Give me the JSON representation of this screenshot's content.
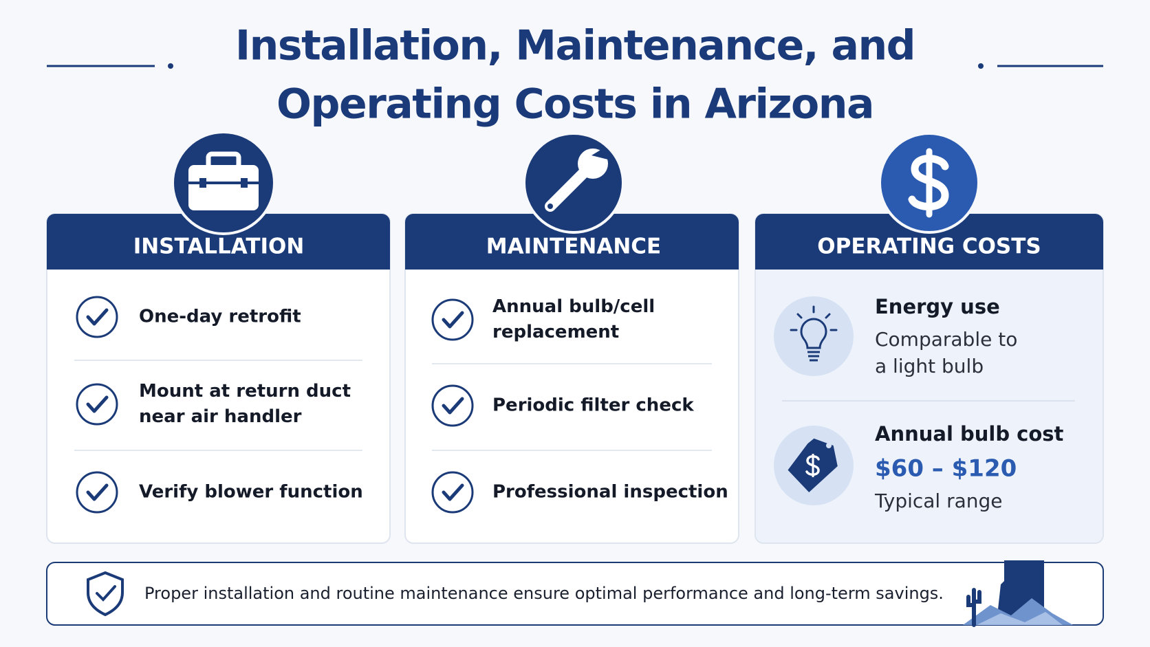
{
  "header": {
    "title": [
      "Installation, Maintenance, and",
      "Operating Costs in Arizona"
    ]
  },
  "cards": [
    {
      "heading": "INSTALLATION",
      "items": [
        [
          "One-day retrofit"
        ],
        [
          "Mount at return duct",
          "near air handler"
        ],
        [
          "Verify blower function"
        ]
      ]
    },
    {
      "heading": "MAINTENANCE",
      "items": [
        [
          "Annual bulb/cell",
          "replacement"
        ],
        [
          "Periodic filter check"
        ],
        [
          "Professional inspection"
        ]
      ]
    },
    {
      "heading": "OPERATING COSTS",
      "items": [
        {
          "title": "Energy use",
          "lines": [
            "Comparable to",
            "a light bulb"
          ]
        },
        {
          "title": "Annual bulb cost",
          "highlight": "$60 – $120",
          "lines": [
            "Typical range"
          ]
        }
      ]
    }
  ],
  "footer": {
    "text": "Proper installation and routine maintenance ensure optimal performance and long-term savings."
  }
}
